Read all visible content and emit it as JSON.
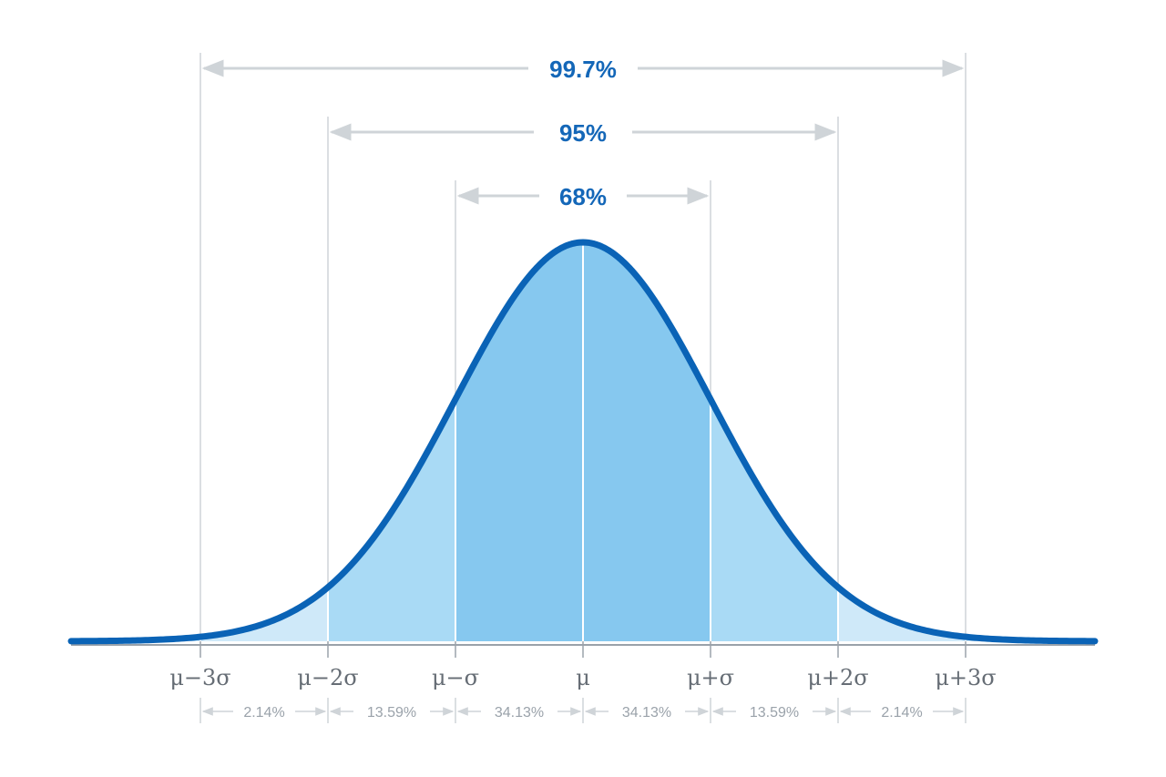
{
  "chart_data": {
    "type": "area",
    "series": [],
    "x_tick_labels": [
      "μ−3σ",
      "μ−2σ",
      "μ−σ",
      "μ",
      "μ+σ",
      "μ+2σ",
      "μ+3σ"
    ],
    "x_tick_values": [
      -3,
      -2,
      -1,
      0,
      1,
      2,
      3
    ],
    "band_labels": [
      "2.14%",
      "13.59%",
      "34.13%",
      "34.13%",
      "13.59%",
      "2.14%"
    ],
    "ranges": [
      {
        "label": "99.7%",
        "from": -3,
        "to": 3
      },
      {
        "label": "95%",
        "from": -2,
        "to": 2
      },
      {
        "label": "68%",
        "from": -1,
        "to": 1
      }
    ],
    "xlim": [
      -3.8,
      4.0
    ],
    "grid": false
  },
  "colors": {
    "curve": "#0a63b6",
    "fill_inner": "#86c8ef",
    "fill_middle": "#a9daf5",
    "fill_outer": "#cfe9f9",
    "range_label": "#1467b8",
    "guide_line": "#cfd4d8",
    "axis_label": "#666d75",
    "band_label": "#9aa2aa",
    "baseline": "#9aa2aa"
  }
}
